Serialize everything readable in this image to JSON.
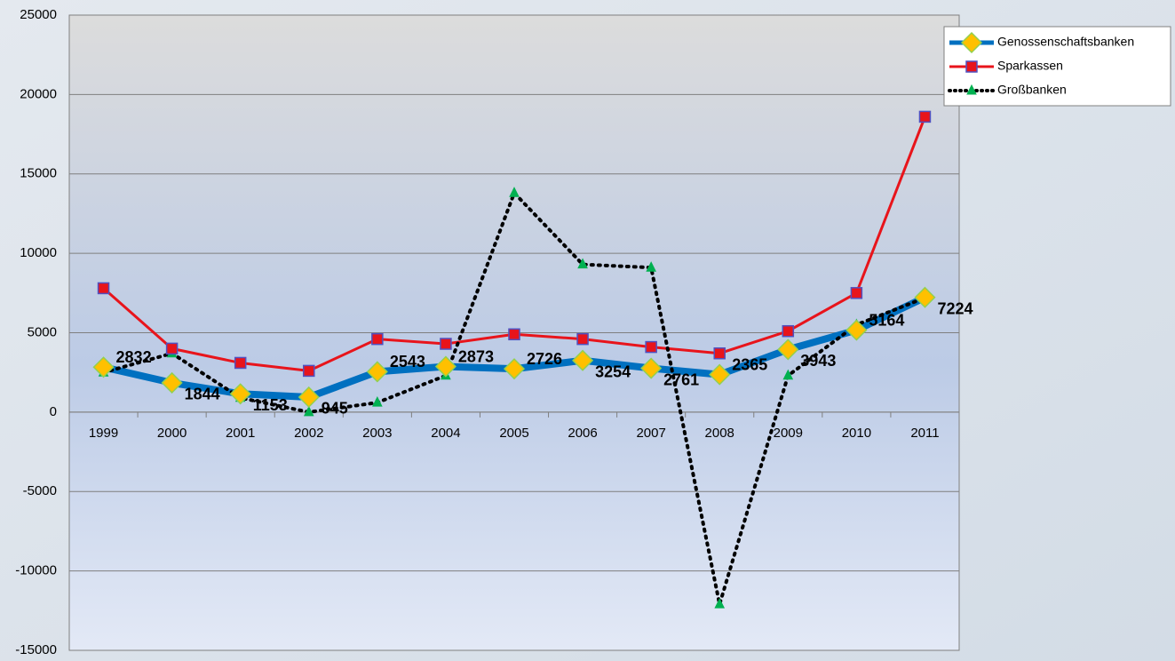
{
  "chart_data": {
    "type": "line",
    "categories": [
      "1999",
      "2000",
      "2001",
      "2002",
      "2003",
      "2004",
      "2005",
      "2006",
      "2007",
      "2008",
      "2009",
      "2010",
      "2011"
    ],
    "series": [
      {
        "name": "Genossenschaftsbanken",
        "color": "#0070c0",
        "values": [
          2832,
          1844,
          1153,
          945,
          2543,
          2873,
          2726,
          3254,
          2761,
          2365,
          3943,
          5164,
          7224
        ]
      },
      {
        "name": "Sparkassen",
        "color": "#e8141b",
        "values": [
          7800,
          4000,
          3100,
          2600,
          4600,
          4300,
          4900,
          4600,
          4100,
          3700,
          5100,
          7500,
          18600
        ]
      },
      {
        "name": "Großbanken",
        "color": "#000000",
        "values": [
          2500,
          3700,
          900,
          0,
          600,
          2300,
          13800,
          9300,
          9100,
          -12100,
          2300,
          5500,
          7200
        ]
      }
    ],
    "ylim": [
      -15000,
      25000
    ],
    "yticks": [
      -15000,
      -10000,
      -5000,
      0,
      5000,
      10000,
      15000,
      20000,
      25000
    ],
    "grid": true,
    "legend": "upper right"
  }
}
